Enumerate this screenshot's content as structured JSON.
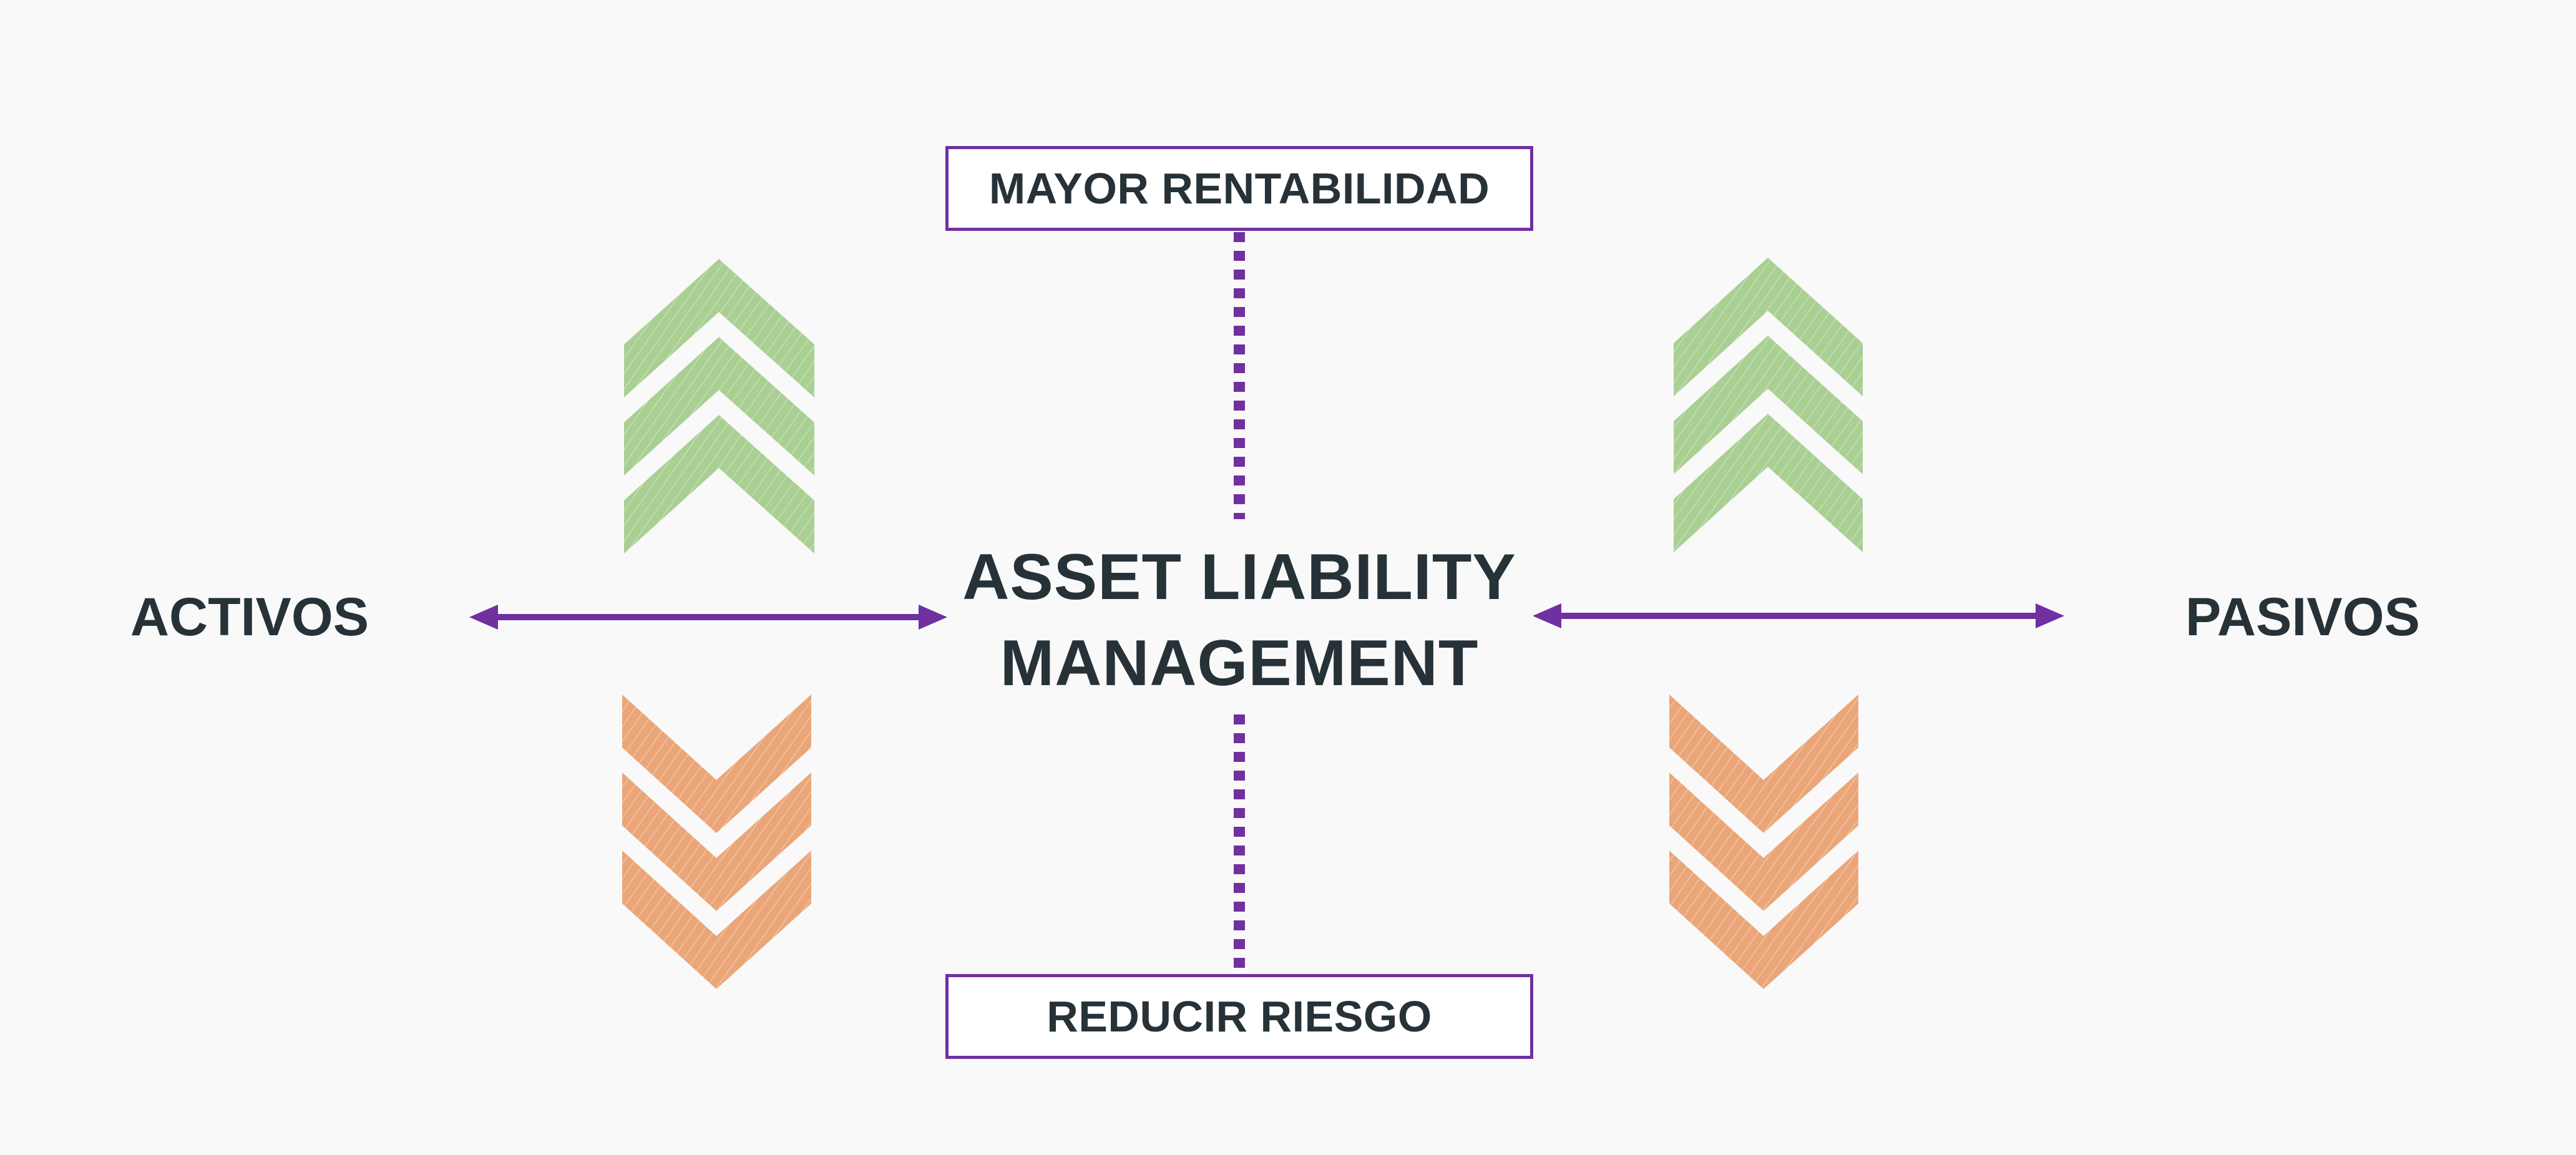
{
  "diagram": {
    "top_box_label": "MAYOR RENTABILIDAD",
    "bottom_box_label": "REDUCIR RIESGO",
    "center_title_line1": "ASSET LIABILITY",
    "center_title_line2": "MANAGEMENT",
    "left_label": "ACTIVOS",
    "right_label": "PASIVOS"
  },
  "icons": {
    "up_chevrons": "triple-chevron-up-icon",
    "down_chevrons": "triple-chevron-down-icon",
    "double_arrow": "double-headed-arrow-icon"
  },
  "colors": {
    "background": "#f9f9f9",
    "text": "#263238",
    "accent_purple": "#7030a0",
    "chevron_green": "#a9cf93",
    "chevron_orange": "#eaa678"
  }
}
